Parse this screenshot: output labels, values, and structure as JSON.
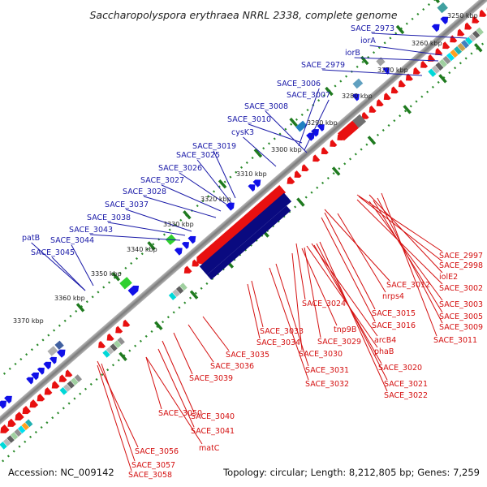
{
  "title": "Saccharopolyspora erythraea NRRL 2338, complete genome",
  "footer": {
    "accession": "Accession: NC_009142",
    "summary": "Topology: circular; Length: 8,212,805 bp; Genes: 7,259"
  },
  "ticks": [
    "3250 kbp",
    "3260 kbp",
    "3270 kbp",
    "3280 kbp",
    "3290 kbp",
    "3300 kbp",
    "3310 kbp",
    "3320 kbp",
    "3330 kbp",
    "3340 kbp",
    "3350 kbp",
    "3360 kbp",
    "3370 kbp"
  ],
  "labels_forward": [
    "SACE_2973",
    "iorA",
    "iorB",
    "SACE_2979",
    "SACE_3006",
    "SACE_3007",
    "SACE_3008",
    "SACE_3010",
    "cysK3",
    "SACE_3019",
    "SACE_3025",
    "SACE_3026",
    "SACE_3027",
    "SACE_3028",
    "SACE_3037",
    "SACE_3038",
    "SACE_3043",
    "patB",
    "SACE_3044",
    "SACE_3045"
  ],
  "labels_reverse": [
    "SACE_2997",
    "SACE_2998",
    "iolE2",
    "SACE_3012",
    "SACE_3002",
    "nrps4",
    "SACE_3003",
    "SACE_3005",
    "SACE_3024",
    "SACE_3015",
    "SACE_3009",
    "SACE_3016",
    "SACE_3011",
    "SACE_3033",
    "SACE_3034",
    "tnp9B",
    "arcB4",
    "SACE_3029",
    "SACE_3030",
    "phaB",
    "SACE_3035",
    "SACE_3036",
    "SACE_3020",
    "SACE_3031",
    "SACE_3039",
    "SACE_3021",
    "SACE_3032",
    "SACE_3022",
    "SACE_3050",
    "SACE_3040",
    "SACE_3041",
    "matC",
    "SACE_3056",
    "SACE_3057",
    "SACE_3058"
  ],
  "colors": {
    "forward_label": "#1a1aa8",
    "reverse_label": "#d41010",
    "forward_cds": "#1010e8",
    "reverse_cds": "#e81010",
    "tick_dots": "#2a8a2a",
    "backbone": "#8a8a8a"
  }
}
